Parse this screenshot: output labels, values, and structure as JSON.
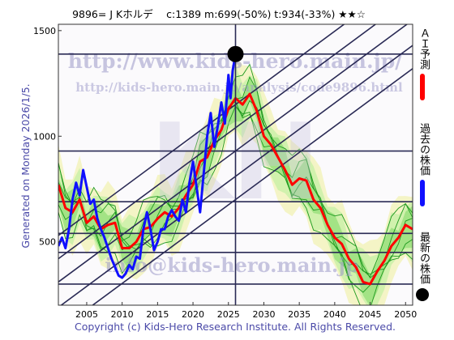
{
  "chart_data": {
    "type": "line",
    "header": "9896= J Kホルデ　 c:1389  m:699(-50%)  t:934(-33%)  ★★☆",
    "generated": "Generated on Monday 2026/1/5.",
    "copyright": "Copyright (c) Kids-Hero Research Institute. All Rights Reserved.",
    "watermarks": {
      "url": "http://www.kids-hero.main.jp/",
      "url2": "http://kids-hero.main.jp/analysis/code9896.html",
      "email": "info@kids-hero.main.jp",
      "logo": "KH"
    },
    "x_ticks": [
      2005,
      2010,
      2015,
      2020,
      2025,
      2030,
      2035,
      2040,
      2045,
      2050
    ],
    "y_ticks": [
      500,
      1000,
      1500
    ],
    "xlim": [
      2001,
      2051
    ],
    "ylim": [
      200,
      1530
    ],
    "horizontal_levels": [
      300,
      450,
      540,
      690,
      930,
      1389
    ],
    "current": {
      "x": 2026.0,
      "y": 1389
    },
    "channel_lines": [
      [
        [
          2001,
          530
        ],
        [
          2051,
          1770
        ]
      ],
      [
        [
          2001,
          420
        ],
        [
          2051,
          1660
        ]
      ],
      [
        [
          2001,
          310
        ],
        [
          2051,
          1550
        ]
      ],
      [
        [
          2001,
          190
        ],
        [
          2051,
          1430
        ]
      ],
      [
        [
          2001,
          80
        ],
        [
          2051,
          1320
        ]
      ]
    ],
    "series": [
      {
        "name": "過去の株価",
        "color": "#1010ff",
        "values": [
          [
            2001.0,
            480
          ],
          [
            2001.5,
            520
          ],
          [
            2002.0,
            470
          ],
          [
            2002.5,
            560
          ],
          [
            2003.0,
            700
          ],
          [
            2003.5,
            780
          ],
          [
            2004.0,
            720
          ],
          [
            2004.5,
            840
          ],
          [
            2005.0,
            760
          ],
          [
            2005.5,
            680
          ],
          [
            2006.0,
            700
          ],
          [
            2006.5,
            610
          ],
          [
            2007.0,
            560
          ],
          [
            2007.5,
            520
          ],
          [
            2008.0,
            470
          ],
          [
            2008.5,
            420
          ],
          [
            2009.0,
            380
          ],
          [
            2009.5,
            340
          ],
          [
            2010.0,
            330
          ],
          [
            2010.5,
            350
          ],
          [
            2011.0,
            390
          ],
          [
            2011.5,
            370
          ],
          [
            2012.0,
            430
          ],
          [
            2012.5,
            420
          ],
          [
            2013.0,
            560
          ],
          [
            2013.5,
            640
          ],
          [
            2014.0,
            560
          ],
          [
            2014.5,
            460
          ],
          [
            2015.0,
            500
          ],
          [
            2015.5,
            560
          ],
          [
            2016.0,
            560
          ],
          [
            2016.5,
            620
          ],
          [
            2017.0,
            650
          ],
          [
            2017.5,
            620
          ],
          [
            2018.0,
            600
          ],
          [
            2018.5,
            700
          ],
          [
            2019.0,
            640
          ],
          [
            2019.5,
            780
          ],
          [
            2020.0,
            880
          ],
          [
            2020.5,
            760
          ],
          [
            2021.0,
            640
          ],
          [
            2021.5,
            820
          ],
          [
            2022.0,
            1000
          ],
          [
            2022.5,
            1110
          ],
          [
            2023.0,
            950
          ],
          [
            2023.5,
            1050
          ],
          [
            2024.0,
            1160
          ],
          [
            2024.5,
            1060
          ],
          [
            2025.0,
            1290
          ],
          [
            2025.3,
            1180
          ],
          [
            2025.6,
            1310
          ],
          [
            2026.0,
            1389
          ]
        ]
      },
      {
        "name": "ＡＩ予測",
        "color": "#ff0000",
        "values": [
          [
            2001,
            770
          ],
          [
            2002,
            660
          ],
          [
            2003,
            640
          ],
          [
            2004,
            700
          ],
          [
            2005,
            590
          ],
          [
            2006,
            620
          ],
          [
            2007,
            560
          ],
          [
            2008,
            580
          ],
          [
            2009,
            590
          ],
          [
            2010,
            470
          ],
          [
            2011,
            470
          ],
          [
            2012,
            500
          ],
          [
            2013,
            560
          ],
          [
            2014,
            570
          ],
          [
            2015,
            610
          ],
          [
            2016,
            640
          ],
          [
            2017,
            620
          ],
          [
            2018,
            660
          ],
          [
            2019,
            720
          ],
          [
            2020,
            770
          ],
          [
            2021,
            880
          ],
          [
            2022,
            900
          ],
          [
            2023,
            980
          ],
          [
            2024,
            1030
          ],
          [
            2025,
            1130
          ],
          [
            2026,
            1180
          ],
          [
            2027,
            1150
          ],
          [
            2028,
            1200
          ],
          [
            2029,
            1120
          ],
          [
            2030,
            1000
          ],
          [
            2031,
            960
          ],
          [
            2032,
            900
          ],
          [
            2033,
            840
          ],
          [
            2034,
            770
          ],
          [
            2035,
            800
          ],
          [
            2036,
            790
          ],
          [
            2037,
            700
          ],
          [
            2038,
            660
          ],
          [
            2039,
            580
          ],
          [
            2040,
            520
          ],
          [
            2041,
            490
          ],
          [
            2042,
            420
          ],
          [
            2043,
            380
          ],
          [
            2044,
            310
          ],
          [
            2045,
            300
          ],
          [
            2046,
            360
          ],
          [
            2047,
            410
          ],
          [
            2048,
            480
          ],
          [
            2049,
            520
          ],
          [
            2050,
            580
          ],
          [
            2051,
            560
          ]
        ]
      }
    ],
    "legend": {
      "ai": "ＡＩ予測",
      "past": "過去の株価",
      "latest": "最新の株価"
    }
  }
}
